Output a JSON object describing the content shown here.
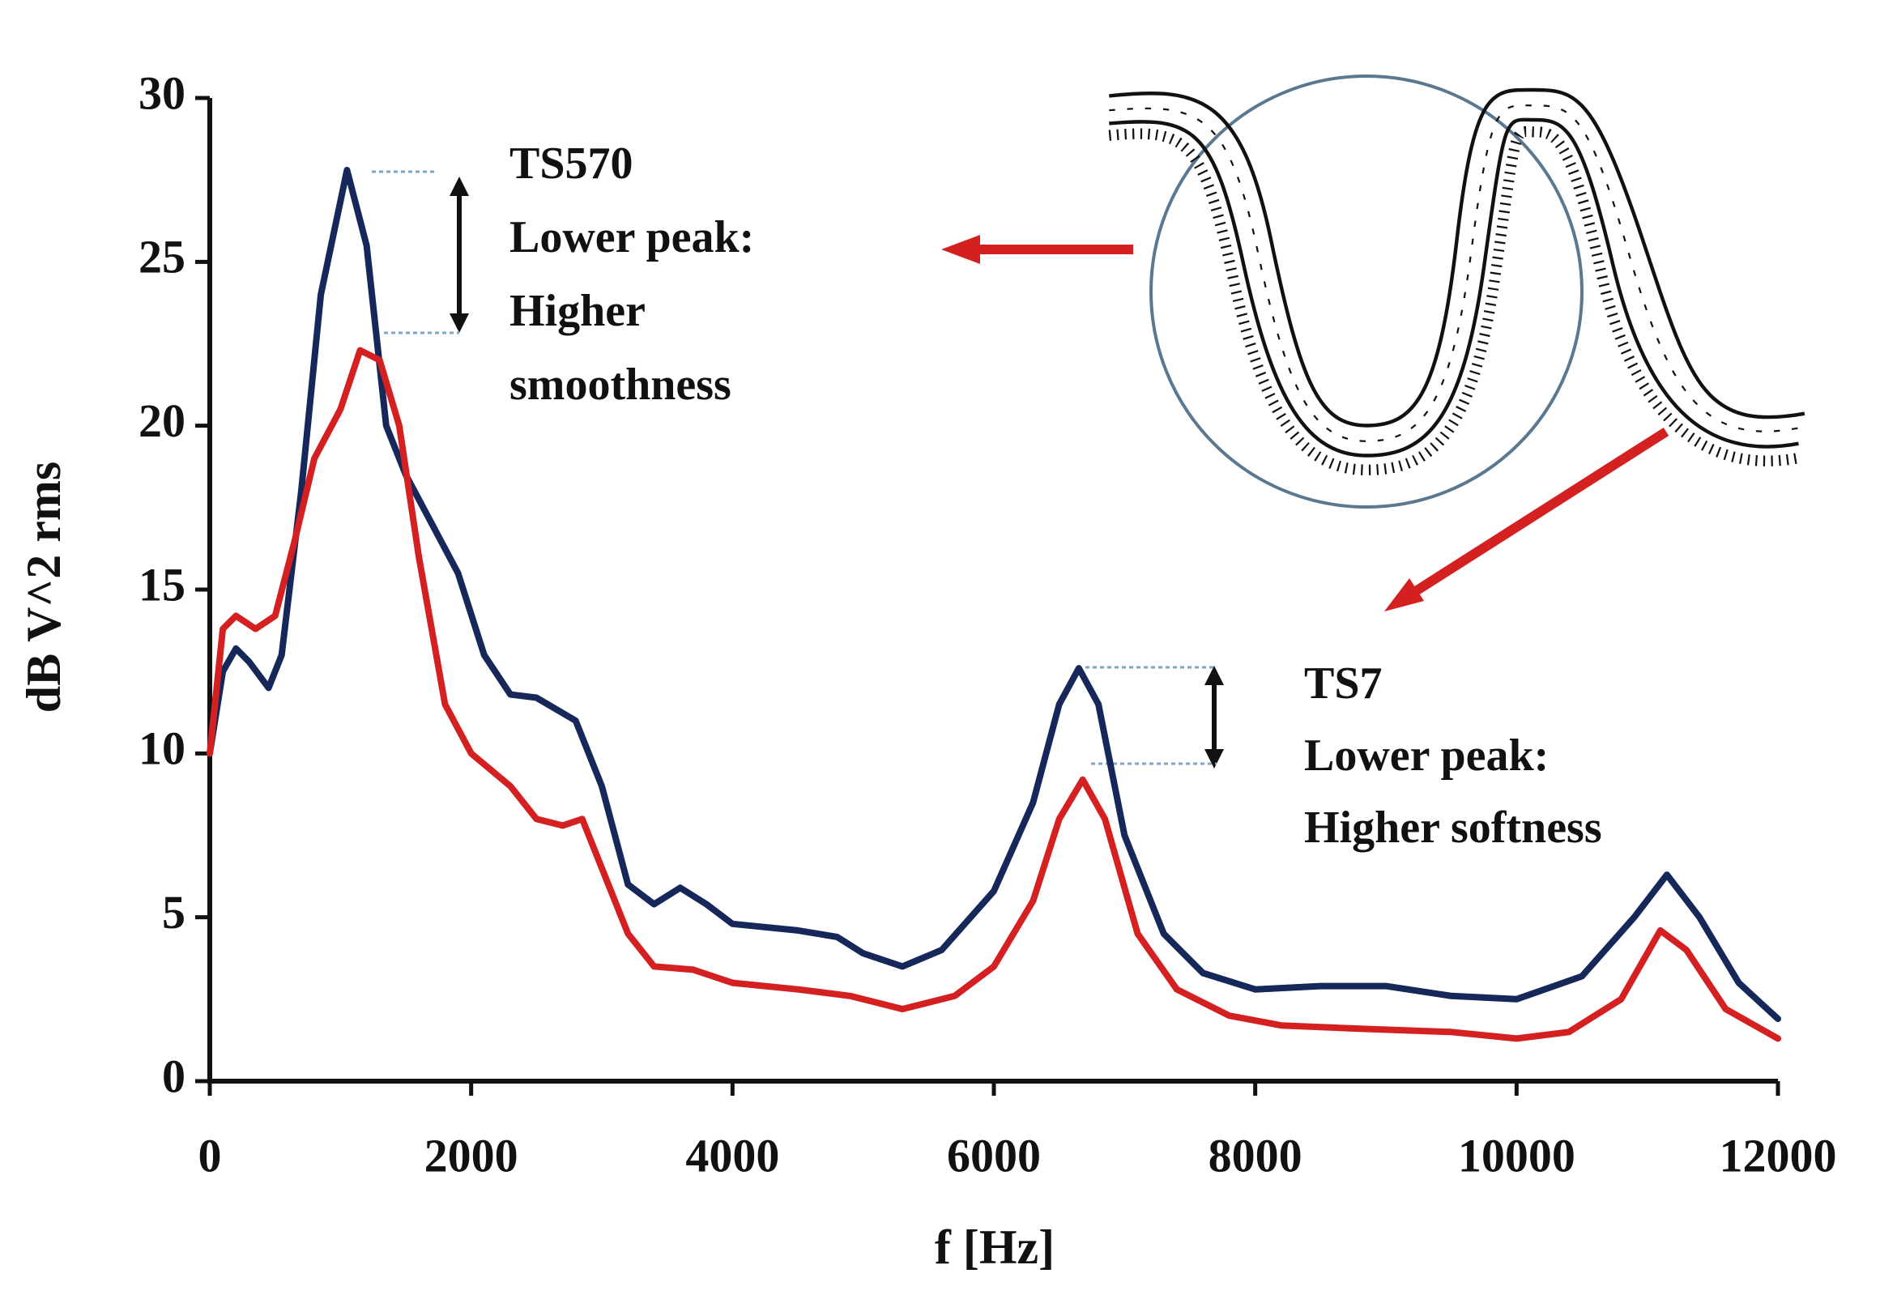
{
  "chart_data": {
    "type": "line",
    "xlabel": "f [Hz]",
    "ylabel": "dB V^2 rms",
    "xlim": [
      0,
      12000
    ],
    "xticks": [
      0,
      2000,
      4000,
      6000,
      8000,
      10000,
      12000
    ],
    "ylim": [
      0,
      30
    ],
    "yticks": [
      0,
      5,
      10,
      15,
      20,
      25,
      30
    ],
    "grid": false,
    "annotations": [
      {
        "lines": [
          "TS570",
          "Lower peak:",
          "Higher",
          "smoothness"
        ]
      },
      {
        "lines": [
          "TS7",
          "Lower peak:",
          "Higher softness"
        ]
      }
    ],
    "series": [
      {
        "color": "#16275a",
        "x": [
          0,
          100,
          200,
          300,
          450,
          550,
          700,
          850,
          1050,
          1200,
          1350,
          1500,
          1700,
          1900,
          2100,
          2300,
          2500,
          2800,
          3000,
          3200,
          3400,
          3600,
          3800,
          4000,
          4500,
          4800,
          5000,
          5300,
          5600,
          6000,
          6300,
          6500,
          6650,
          6800,
          7000,
          7300,
          7600,
          8000,
          8500,
          9000,
          9500,
          10000,
          10500,
          10900,
          11150,
          11400,
          11700,
          12000
        ],
        "values": [
          10,
          12.5,
          13.2,
          12.8,
          12,
          13,
          18,
          24,
          27.8,
          25.5,
          20,
          18.5,
          17,
          15.5,
          13,
          11.8,
          11.7,
          11,
          9,
          6,
          5.4,
          5.9,
          5.4,
          4.8,
          4.6,
          4.4,
          3.9,
          3.5,
          4,
          5.8,
          8.5,
          11.5,
          12.6,
          11.5,
          7.5,
          4.5,
          3.3,
          2.8,
          2.9,
          2.9,
          2.6,
          2.5,
          3.2,
          5,
          6.3,
          5,
          3,
          1.9
        ]
      },
      {
        "color": "#d42020",
        "x": [
          0,
          100,
          200,
          350,
          500,
          650,
          800,
          1000,
          1150,
          1300,
          1450,
          1600,
          1800,
          2000,
          2300,
          2500,
          2700,
          2850,
          3000,
          3200,
          3400,
          3700,
          4000,
          4500,
          4900,
          5300,
          5700,
          6000,
          6300,
          6500,
          6680,
          6850,
          7100,
          7400,
          7800,
          8200,
          8800,
          9500,
          10000,
          10400,
          10800,
          11100,
          11300,
          11600,
          12000
        ],
        "values": [
          10,
          13.8,
          14.2,
          13.8,
          14.2,
          16.5,
          19,
          20.5,
          22.3,
          22,
          20,
          16,
          11.5,
          10,
          9,
          8,
          7.8,
          8,
          6.5,
          4.5,
          3.5,
          3.4,
          3,
          2.8,
          2.6,
          2.2,
          2.6,
          3.5,
          5.5,
          8,
          9.2,
          8,
          4.5,
          2.8,
          2,
          1.7,
          1.6,
          1.5,
          1.3,
          1.5,
          2.5,
          4.6,
          4,
          2.2,
          1.3
        ]
      }
    ]
  }
}
